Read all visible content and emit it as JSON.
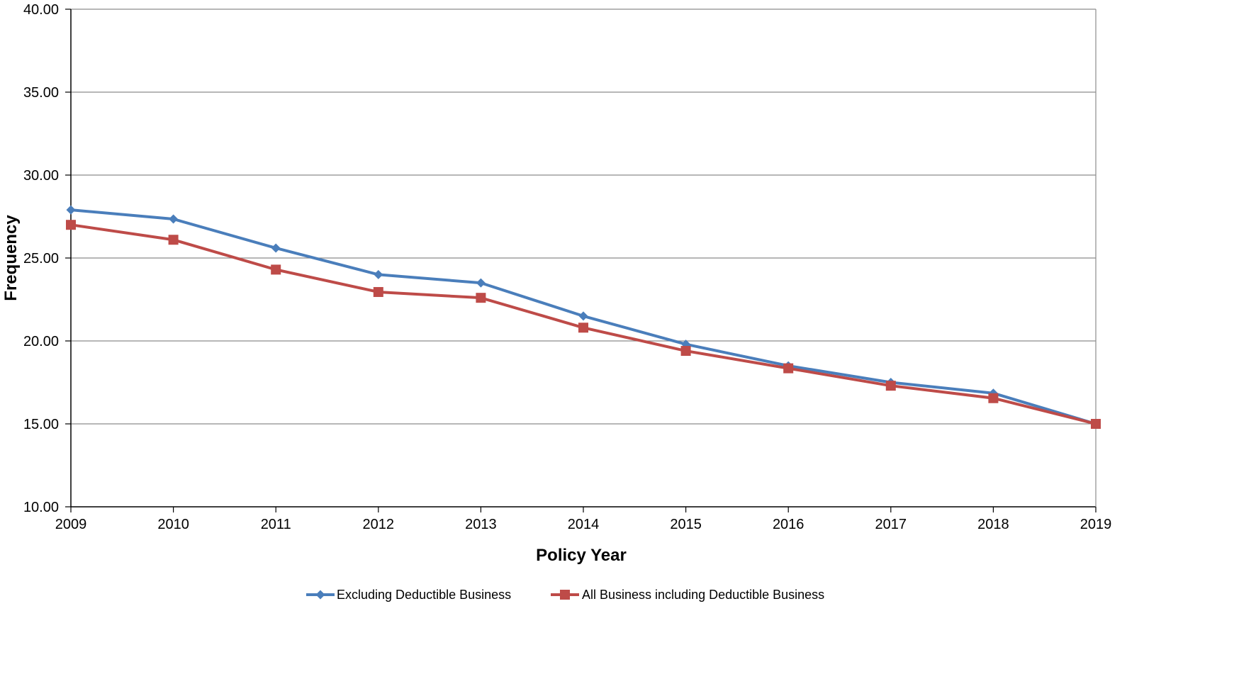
{
  "chart_data": {
    "type": "line",
    "xlabel": "Policy Year",
    "ylabel": "Frequency",
    "categories": [
      "2009",
      "2010",
      "2011",
      "2012",
      "2013",
      "2014",
      "2015",
      "2016",
      "2017",
      "2018",
      "2019"
    ],
    "y_ticks": [
      "10.00",
      "15.00",
      "20.00",
      "25.00",
      "30.00",
      "35.00",
      "40.00"
    ],
    "ylim": [
      10,
      40
    ],
    "grid": "horizontal",
    "legend_position": "bottom",
    "series": [
      {
        "name": "Excluding Deductible Business",
        "color": "#4a7ebb",
        "marker": "diamond",
        "values": [
          27.9,
          27.35,
          25.6,
          24.0,
          23.5,
          21.5,
          19.8,
          18.5,
          17.5,
          16.85,
          15.0
        ]
      },
      {
        "name": "All Business including Deductible Business",
        "color": "#be4b48",
        "marker": "square",
        "values": [
          27.0,
          26.1,
          24.3,
          22.95,
          22.6,
          20.8,
          19.4,
          18.35,
          17.3,
          16.55,
          15.0
        ]
      }
    ]
  }
}
